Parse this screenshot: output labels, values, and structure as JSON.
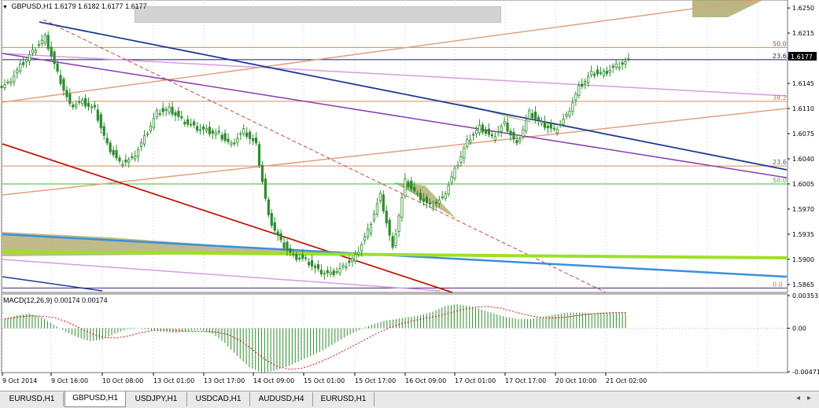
{
  "header": {
    "symbol": "GBPUSD,H1",
    "ohlc": "1.6179 1.6182 1.6177 1.6177"
  },
  "price_axis": {
    "ticks": [
      "1.6250",
      "1.6215",
      "1.6180",
      "1.6145",
      "1.6110",
      "1.6075",
      "1.6040",
      "1.6005",
      "1.5970",
      "1.5935",
      "1.5900",
      "1.5865"
    ],
    "current_price": "1.6177"
  },
  "fib_labels": [
    {
      "text": "50.0",
      "color": "#5a5a5a"
    },
    {
      "text": "23.6",
      "color": "#1a1a6a"
    },
    {
      "text": "38.2",
      "color": "#c87a4a"
    },
    {
      "text": "23.6",
      "color": "#5a5a5a"
    },
    {
      "text": "50.0",
      "color": "#3cb832"
    },
    {
      "text": "0.0",
      "color": "#c87a4a"
    }
  ],
  "macd": {
    "label": "MACD(12,26,9) 0.00174 0.00174",
    "ticks": [
      "0.00353",
      "0.00",
      "-0.00471"
    ]
  },
  "time_axis": {
    "labels": [
      "9 Oct 2014",
      "9 Oct 16:00",
      "10 Oct 08:00",
      "13 Oct 01:00",
      "13 Oct 17:00",
      "14 Oct 09:00",
      "15 Oct 01:00",
      "15 Oct 17:00",
      "16 Oct 09:00",
      "17 Oct 01:00",
      "17 Oct 17:00",
      "20 Oct 10:00",
      "21 Oct 02:00"
    ]
  },
  "tabs": [
    {
      "label": "EURUSD,H1",
      "active": false
    },
    {
      "label": "GBPUSD,H1",
      "active": true
    },
    {
      "label": "USDJPY,H1",
      "active": false
    },
    {
      "label": "USDCAD,H1",
      "active": false
    },
    {
      "label": "AUDUSD,H4",
      "active": false
    },
    {
      "label": "EURUSD,H1",
      "active": false
    }
  ],
  "colors": {
    "candle": "#2e8b2e",
    "channel_navy": "#1f3a93",
    "trend_purple": "#8a3fb0",
    "trend_red": "#c0180c",
    "trend_blue": "#3c8fdc",
    "trend_lime": "#9ee026",
    "trend_pink": "#d79be0",
    "trend_salmon": "#e0a080",
    "fill_olive": "#a9a563"
  },
  "chart_data": {
    "type": "candlestick",
    "title": "GBPUSD,H1",
    "ylim": [
      1.5855,
      1.626
    ],
    "x_labels": [
      "9 Oct 2014",
      "9 Oct 16:00",
      "10 Oct 08:00",
      "13 Oct 01:00",
      "13 Oct 17:00",
      "14 Oct 09:00",
      "15 Oct 01:00",
      "15 Oct 17:00",
      "16 Oct 09:00",
      "17 Oct 01:00",
      "17 Oct 17:00",
      "20 Oct 10:00",
      "21 Oct 02:00"
    ],
    "close_series": [
      1.6145,
      1.617,
      1.619,
      1.621,
      1.616,
      1.6115,
      1.612,
      1.611,
      1.606,
      1.6035,
      1.604,
      1.607,
      1.6105,
      1.611,
      1.6095,
      1.6085,
      1.608,
      1.6075,
      1.606,
      1.608,
      1.606,
      1.596,
      1.5925,
      1.5905,
      1.59,
      1.5885,
      1.588,
      1.589,
      1.5905,
      1.594,
      1.599,
      1.5915,
      1.601,
      1.599,
      1.5975,
      1.5985,
      1.6025,
      1.6065,
      1.6085,
      1.607,
      1.609,
      1.606,
      1.6105,
      1.609,
      1.608,
      1.61,
      1.614,
      1.616,
      1.616,
      1.617,
      1.6177
    ],
    "macd_values": [
      0.001,
      0.0014,
      0.0016,
      0.0012,
      0.0004,
      -0.0004,
      -0.001,
      -0.0014,
      -0.0012,
      -0.0006,
      -0.0001,
      0.0,
      -0.0002,
      -0.0004,
      -0.0005,
      -0.0003,
      -0.0002,
      -0.0006,
      -0.0016,
      -0.003,
      -0.0042,
      -0.0048,
      -0.0046,
      -0.0042,
      -0.0036,
      -0.003,
      -0.0024,
      -0.0016,
      -0.0008,
      -0.0002,
      0.0004,
      0.0008,
      0.001,
      0.0012,
      0.0014,
      0.0018,
      0.0024,
      0.0026,
      0.0024,
      0.002,
      0.0016,
      0.0012,
      0.001,
      0.001,
      0.0012,
      0.0015,
      0.0017,
      0.0017,
      0.0016,
      0.0017,
      0.00174
    ],
    "macd_ylim": [
      -0.00471,
      0.00353
    ]
  }
}
